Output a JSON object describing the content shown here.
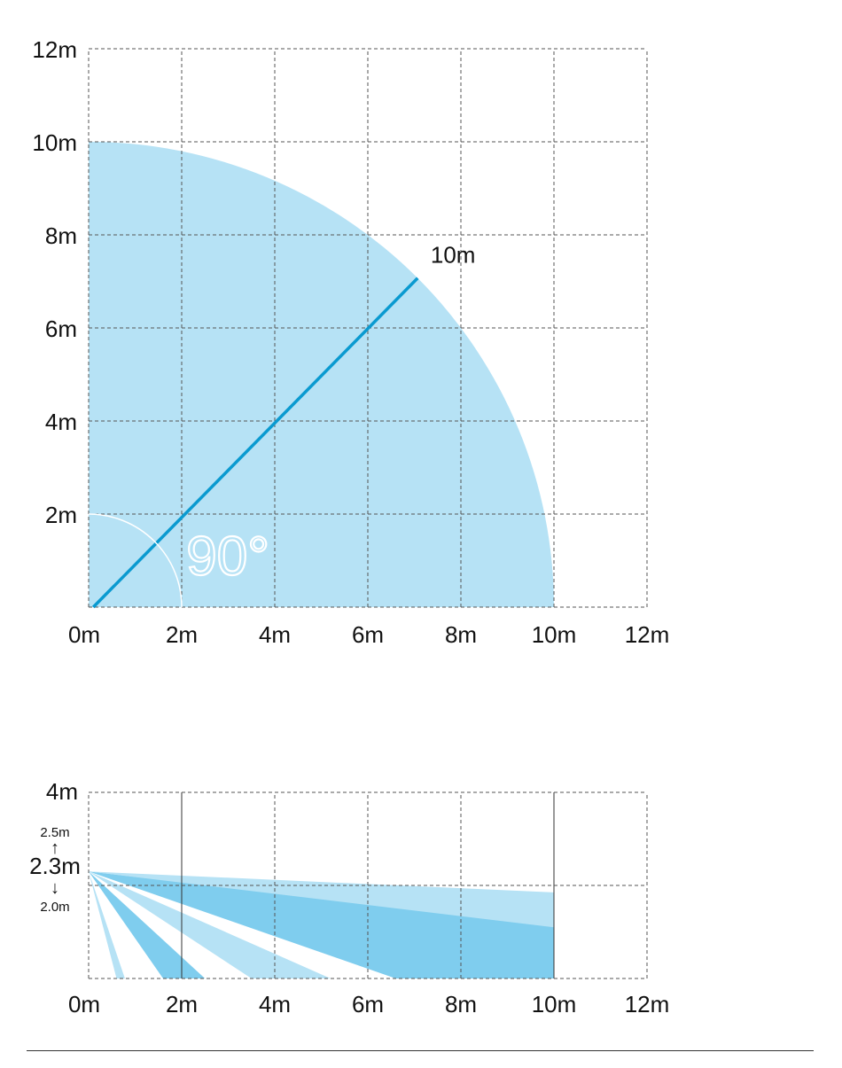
{
  "colors": {
    "coverage_light": "#b6e2f5",
    "coverage_dark": "#7fcdee",
    "beam_line": "#0a9ad0",
    "grid": "#555555",
    "text": "#111111"
  },
  "top_view": {
    "x_ticks": [
      "0m",
      "2m",
      "4m",
      "6m",
      "8m",
      "10m",
      "12m"
    ],
    "y_ticks": [
      "2m",
      "4m",
      "6m",
      "8m",
      "10m",
      "12m"
    ],
    "range_label": "10m",
    "angle_label": "90°",
    "range_m": 10,
    "angle_deg": 90,
    "max_m": 12
  },
  "side_view": {
    "x_ticks": [
      "0m",
      "2m",
      "4m",
      "6m",
      "8m",
      "10m",
      "12m"
    ],
    "y_top_label": "4m",
    "height_max_label": "2.5m",
    "height_label": "2.3m",
    "height_min_label": "2.0m",
    "up_arrow": "↑",
    "down_arrow": "↓",
    "mount_height_m": 2.3,
    "max_x_m": 12,
    "max_y_m": 4,
    "beams": [
      {
        "shade": "light",
        "far_x": [
          0.6,
          0.78
        ]
      },
      {
        "shade": "dark",
        "far_x": [
          1.6,
          2.5
        ]
      },
      {
        "shade": "light",
        "far_x": [
          3.5,
          5.2
        ]
      },
      {
        "shade": "dark",
        "end_x": 10,
        "end_y": [
          0.6,
          1.15
        ]
      },
      {
        "shade": "light",
        "end_x": 10,
        "end_y": [
          1.1,
          1.85
        ]
      }
    ]
  }
}
